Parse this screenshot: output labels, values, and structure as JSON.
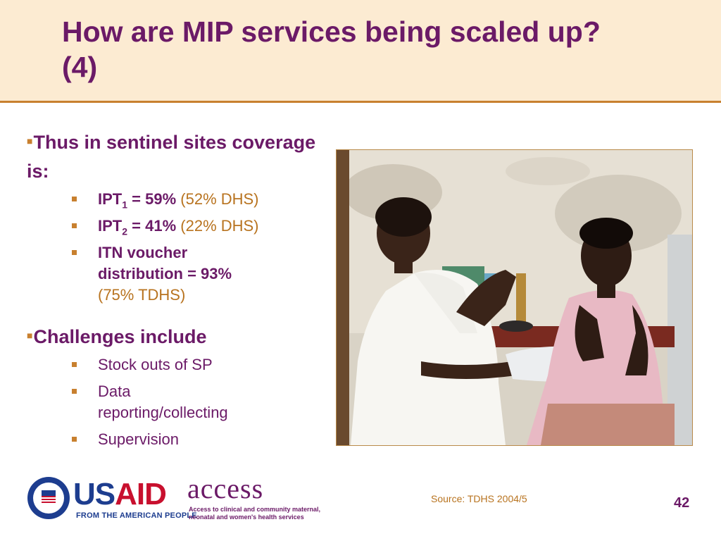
{
  "slide": {
    "title_line1": "How are MIP services being scaled up?",
    "title_line2": "(4)",
    "page_number": "42",
    "source": "Source:  TDHS 2004/5"
  },
  "section1": {
    "heading": "Thus in sentinel sites coverage is:",
    "items": [
      {
        "label": "IPT",
        "sub": "1",
        "value": " = 59%",
        "paren": "(52% DHS)"
      },
      {
        "label": "IPT",
        "sub": "2",
        "value": " = 41%",
        "paren": "(22% DHS)"
      },
      {
        "label": "ITN voucher distribution = 93%",
        "paren": "(75% TDHS)"
      }
    ]
  },
  "section2": {
    "heading": "Challenges include",
    "items": [
      "Stock outs of SP",
      "Data reporting/collecting",
      "Supervision"
    ]
  },
  "logos": {
    "usaid_us": "US",
    "usaid_aid": "AID",
    "usaid_tagline": "FROM THE AMERICAN PEOPLE",
    "seal_text": "UNITED STATES AGENCY INTERNATIONAL DEVELOPMENT",
    "access_word": "access",
    "access_tagline": "Access to clinical and community maternal, neonatal and women's health services"
  },
  "colors": {
    "title_purple": "#6b1a67",
    "accent_orange": "#c8802f",
    "header_bg": "#fcebd2"
  },
  "photo_label": "photo-health-worker-with-pregnant-woman"
}
